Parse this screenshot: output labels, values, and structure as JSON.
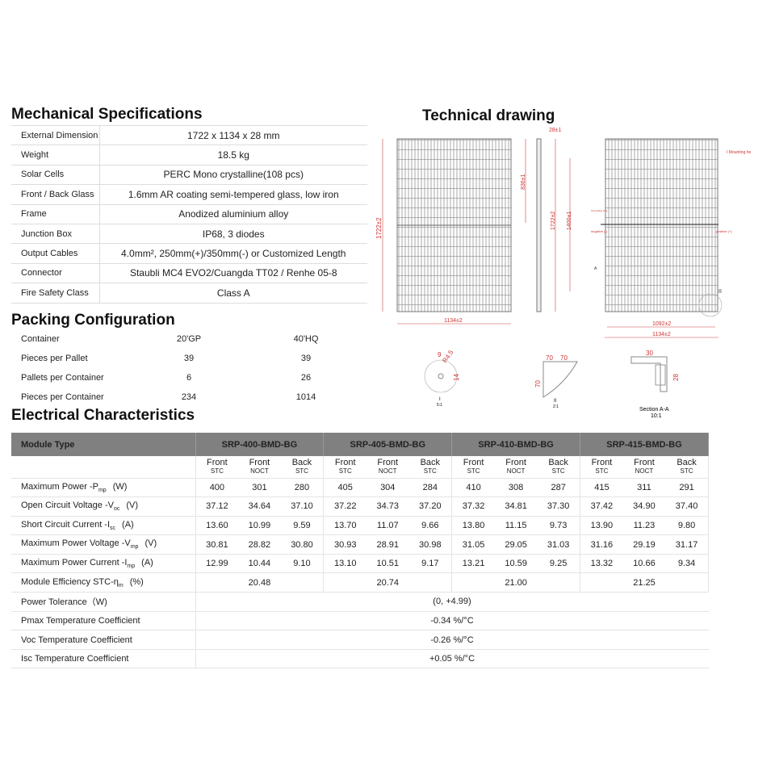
{
  "mechanical": {
    "title": "Mechanical Specifications",
    "rows": [
      {
        "label": "External Dimension",
        "value": "1722 x 1134 x 28 mm"
      },
      {
        "label": "Weight",
        "value": "18.5 kg"
      },
      {
        "label": "Solar Cells",
        "value": "PERC Mono crystalline(108 pcs)"
      },
      {
        "label": "Front / Back Glass",
        "value": "1.6mm AR coating semi-tempered glass, low iron"
      },
      {
        "label": "Frame",
        "value": "Anodized aluminium alloy"
      },
      {
        "label": "Junction Box",
        "value": "IP68, 3 diodes"
      },
      {
        "label": "Output Cables",
        "value": "4.0mm², 250mm(+)/350mm(-) or Customized Length"
      },
      {
        "label": "Connector",
        "value": "Staubli MC4 EVO2/Cuangda TT02 / Renhe 05-8"
      },
      {
        "label": "Fire Safety Class",
        "value": "Class A"
      }
    ]
  },
  "packing": {
    "title": "Packing Configuration",
    "rows": [
      {
        "label": "Container",
        "a": "20'GP",
        "b": "40'HQ"
      },
      {
        "label": "Pieces per Pallet",
        "a": "39",
        "b": "39"
      },
      {
        "label": "Pallets per Container",
        "a": "6",
        "b": "26"
      },
      {
        "label": "Pieces per Container",
        "a": "234",
        "b": "1014"
      }
    ]
  },
  "drawing": {
    "title": "Technical drawing",
    "labels": {
      "thick": "28±1",
      "h1": "1722±2",
      "h2": "1722±2",
      "w1": "1134±2",
      "w2": "1092±2",
      "w3": "1134±2",
      "d836": "836±1",
      "d1400": "1400±1",
      "mount": "I Mounting ho",
      "neg": "negative (-)",
      "pos": "positive (+)",
      "grounding": "Grounding hole",
      "secA": "A",
      "ii": "II",
      "r": "R4.5",
      "nine": "9",
      "fourteen": "14",
      "seventy": "70",
      "detail1": "I",
      "scale1": "5:1",
      "detail2": "II",
      "scale2": "2:1",
      "thirty": "30",
      "twentyeight": "28",
      "section": "Section A-A",
      "scale3": "10:1"
    }
  },
  "electrical": {
    "title": "Electrical Characteristics",
    "header": "Module Type",
    "models": [
      "SRP-400-BMD-BG",
      "SRP-405-BMD-BG",
      "SRP-410-BMD-BG",
      "SRP-415-BMD-BG"
    ],
    "sub": [
      {
        "a": "Front",
        "b": "STC"
      },
      {
        "a": "Front",
        "b": "NOCT"
      },
      {
        "a": "Back",
        "b": "STC"
      }
    ],
    "rows": [
      {
        "label": "Maximum Power -P",
        "s": "mp",
        "unit": "(W)",
        "v": [
          "400",
          "301",
          "280",
          "405",
          "304",
          "284",
          "410",
          "308",
          "287",
          "415",
          "311",
          "291"
        ]
      },
      {
        "label": "Open Circuit Voltage -V",
        "s": "oc",
        "unit": "(V)",
        "v": [
          "37.12",
          "34.64",
          "37.10",
          "37.22",
          "34.73",
          "37.20",
          "37.32",
          "34.81",
          "37.30",
          "37.42",
          "34.90",
          "37.40"
        ]
      },
      {
        "label": "Short Circuit Current -I",
        "s": "sc",
        "unit": "(A)",
        "v": [
          "13.60",
          "10.99",
          "9.59",
          "13.70",
          "11.07",
          "9.66",
          "13.80",
          "11.15",
          "9.73",
          "13.90",
          "11.23",
          "9.80"
        ]
      },
      {
        "label": "Maximum Power Voltage -V",
        "s": "mp",
        "unit": "(V)",
        "v": [
          "30.81",
          "28.82",
          "30.80",
          "30.93",
          "28.91",
          "30.98",
          "31.05",
          "29.05",
          "31.03",
          "31.16",
          "29.19",
          "31.17"
        ]
      },
      {
        "label": "Maximum Power Current -I",
        "s": "mp",
        "unit": "(A)",
        "v": [
          "12.99",
          "10.44",
          "9.10",
          "13.10",
          "10.51",
          "9.17",
          "13.21",
          "10.59",
          "9.25",
          "13.32",
          "10.66",
          "9.34"
        ]
      }
    ],
    "efficiency": {
      "label": "Module Efficiency STC-η",
      "s": "m",
      "unit": "(%)",
      "v": [
        "20.48",
        "20.74",
        "21.00",
        "21.25"
      ]
    },
    "spans": [
      {
        "label": "Power Tolerance（W)",
        "value": "(0, +4.99)"
      },
      {
        "label": "Pmax Temperature Coefficient",
        "value": "-0.34 %/°C"
      },
      {
        "label": "Voc Temperature Coefficient",
        "value": "-0.26 %/°C"
      },
      {
        "label": "Isc Temperature Coefficient",
        "value": "+0.05 %/°C"
      }
    ]
  }
}
